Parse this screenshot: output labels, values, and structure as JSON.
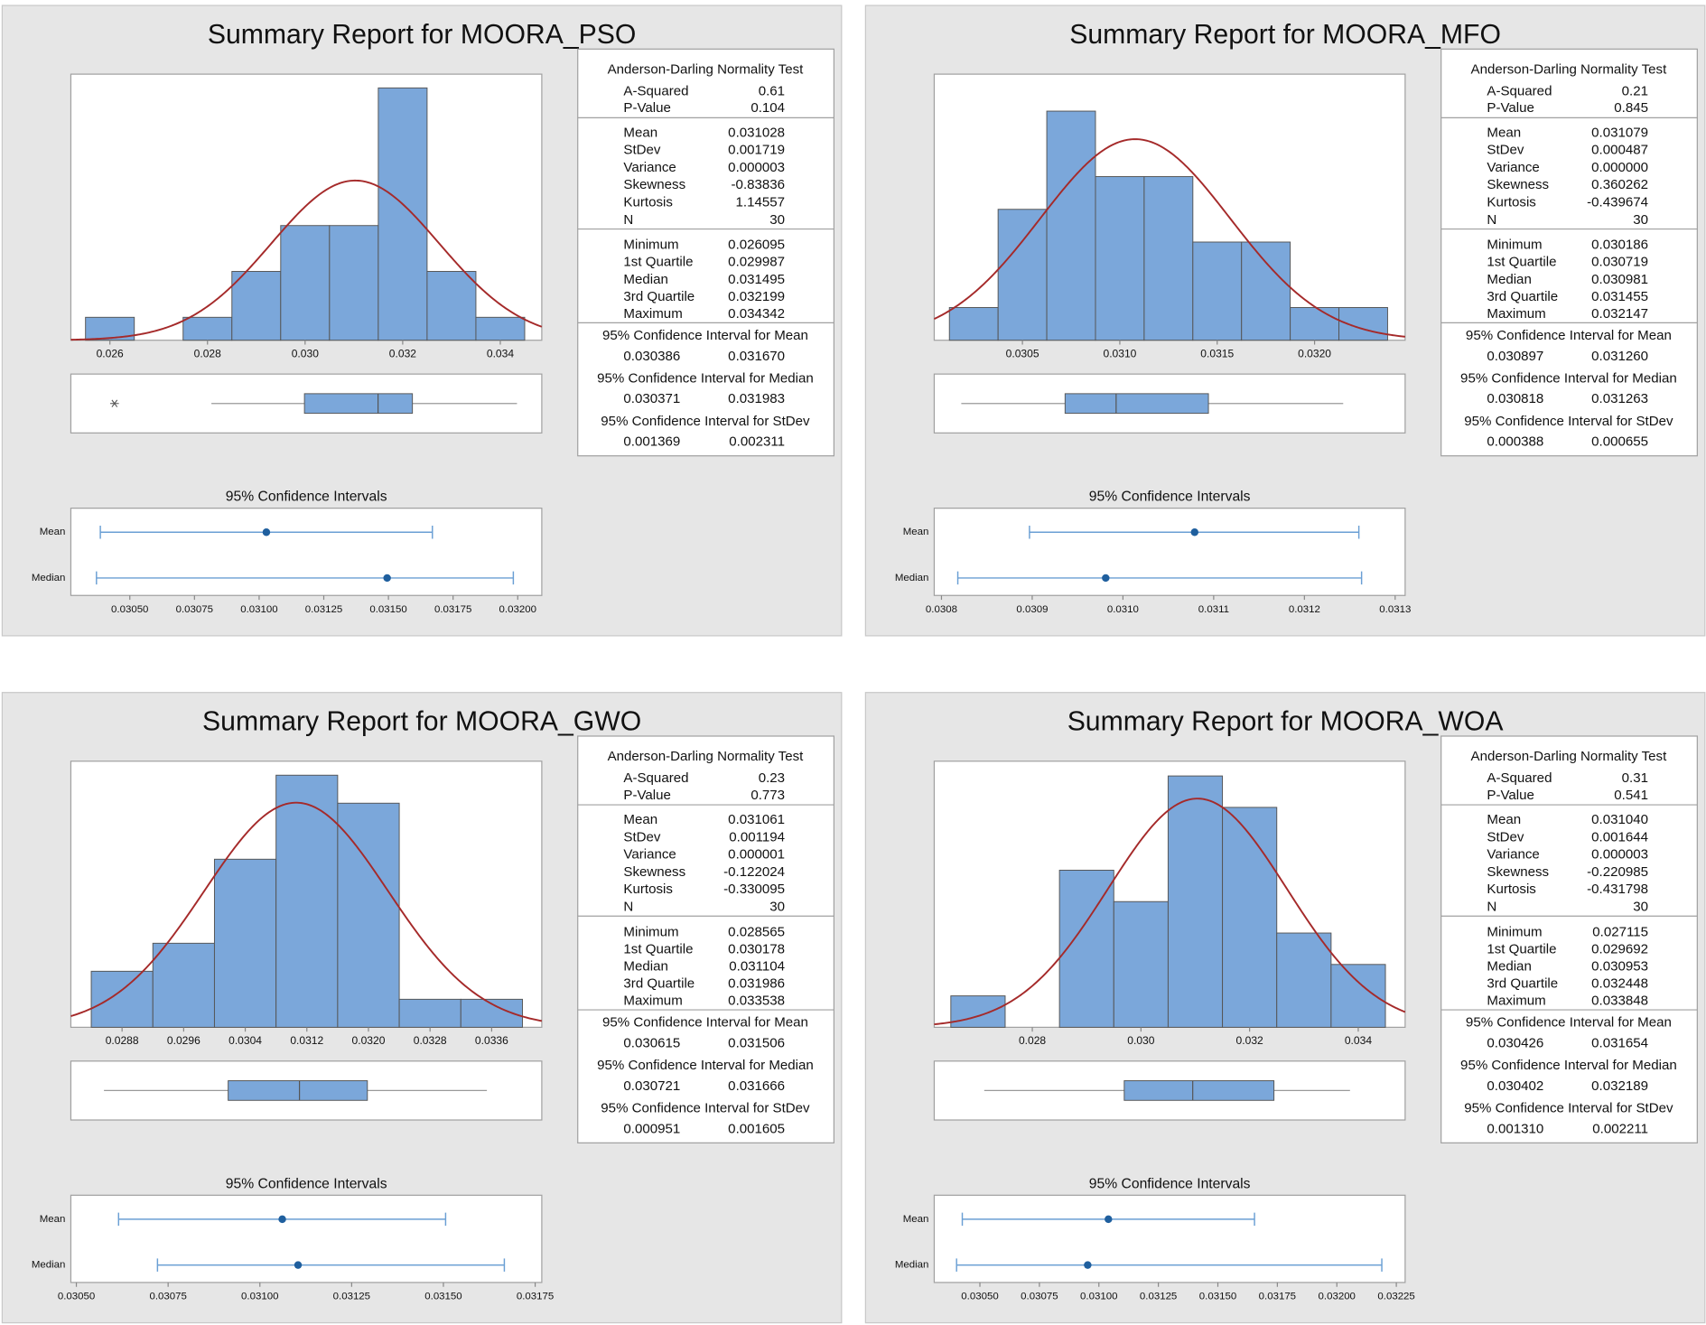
{
  "chart_data": [
    {
      "type": "summary",
      "title": "Summary Report for MOORA_PSO",
      "histogram": {
        "bins": [
          0.0255,
          0.0265,
          0.0275,
          0.0285,
          0.0295,
          0.0305,
          0.0315,
          0.0325,
          0.0335,
          0.0345
        ],
        "counts": [
          1,
          0,
          1,
          3,
          5,
          5,
          11,
          3,
          1
        ],
        "color": "#7ba7da",
        "curve_color": "#a52a2a",
        "xlim": [
          0.0252,
          0.03485
        ],
        "ylim": [
          0,
          11.6
        ],
        "xticks": [
          0.026,
          0.028,
          {
            "value": 0.03,
            "label": "0.030"
          },
          0.032,
          0.034
        ]
      },
      "boxplot": {
        "whiskers": [
          0.02808,
          0.034342
        ],
        "outliers": [
          0.026095
        ]
      },
      "test": {
        "title": "Anderson-Darling Normality Test",
        "rows": [
          {
            "name": "A-Squared",
            "value": 0.61
          },
          {
            "name": "P-Value",
            "value": 0.104
          }
        ]
      },
      "stats": [
        {
          "name": "Mean",
          "value": 0.031028
        },
        {
          "name": "StDev",
          "value": 0.001719
        },
        {
          "name": "Variance",
          "value": 3e-06
        },
        {
          "name": "Skewness",
          "value": -0.83836
        },
        {
          "name": "Kurtosis",
          "value": 1.14557
        },
        {
          "name": "N",
          "value": 30
        }
      ],
      "quartiles": [
        {
          "name": "Minimum",
          "value": 0.026095
        },
        {
          "name": "1st Quartile",
          "value": 0.029987
        },
        {
          "name": "Median",
          "value": 0.031495
        },
        {
          "name": "3rd Quartile",
          "value": 0.032199
        },
        {
          "name": "Maximum",
          "value": 0.034342
        }
      ],
      "intervals": [
        {
          "title": "95% Confidence Interval for Mean",
          "values": [
            0.030386,
            0.03167
          ],
          "value_labels": [
            "0.030386",
            "0.031670"
          ]
        },
        {
          "title": "95% Confidence Interval for Median",
          "values": [
            0.030371,
            0.031983
          ]
        },
        {
          "title": "95% Confidence Interval for StDev",
          "values": [
            0.001369,
            0.002311
          ]
        }
      ],
      "ci_plot": {
        "title": "95% Confidence Intervals",
        "categories": [
          "Mean",
          "Median"
        ],
        "color": "#6a9fd4",
        "point_color": "#1f5f9e",
        "xlim": [
          0.030272,
          0.032093
        ],
        "xticks": [
          {
            "value": 0.0305,
            "label": "0.03050"
          },
          0.03075,
          {
            "value": 0.031,
            "label": "0.03100"
          },
          0.03125,
          {
            "value": 0.0315,
            "label": "0.03150"
          },
          0.03175,
          {
            "value": 0.032,
            "label": "0.03200"
          }
        ]
      }
    },
    {
      "type": "summary",
      "title": "Summary Report for MOORA_MFO",
      "histogram": {
        "bins": [
          0.030125,
          0.030375,
          0.030625,
          0.030875,
          0.031125,
          0.031375,
          0.031625,
          0.031875,
          0.032125,
          0.032375
        ],
        "counts": [
          1,
          4,
          7,
          5,
          5,
          3,
          3,
          1,
          1
        ],
        "color": "#7ba7da",
        "curve_color": "#a52a2a",
        "xlim": [
          0.030047,
          0.032465
        ],
        "ylim": [
          0,
          8.13
        ],
        "xticks": [
          0.0305,
          {
            "value": 0.031,
            "label": "0.0310"
          },
          0.0315,
          {
            "value": 0.032,
            "label": "0.0320"
          }
        ]
      },
      "boxplot": {
        "whiskers": [
          0.030186,
          0.032147
        ],
        "outliers": []
      },
      "test": {
        "title": "Anderson-Darling Normality Test",
        "rows": [
          {
            "name": "A-Squared",
            "value": 0.21
          },
          {
            "name": "P-Value",
            "value": 0.845
          }
        ]
      },
      "stats": [
        {
          "name": "Mean",
          "value": 0.031079
        },
        {
          "name": "StDev",
          "value": 0.000487
        },
        {
          "name": "Variance",
          "value": 0,
          "value_label": "0.000000"
        },
        {
          "name": "Skewness",
          "value": 0.360262
        },
        {
          "name": "Kurtosis",
          "value": -0.439674
        },
        {
          "name": "N",
          "value": 30
        }
      ],
      "quartiles": [
        {
          "name": "Minimum",
          "value": 0.030186
        },
        {
          "name": "1st Quartile",
          "value": 0.030719
        },
        {
          "name": "Median",
          "value": 0.030981
        },
        {
          "name": "3rd Quartile",
          "value": 0.031455
        },
        {
          "name": "Maximum",
          "value": 0.032147
        }
      ],
      "intervals": [
        {
          "title": "95% Confidence Interval for Mean",
          "values": [
            0.030897,
            0.03126
          ],
          "value_labels": [
            "0.030897",
            "0.031260"
          ]
        },
        {
          "title": "95% Confidence Interval for Median",
          "values": [
            0.030818,
            0.031263
          ]
        },
        {
          "title": "95% Confidence Interval for StDev",
          "values": [
            0.000388,
            0.000655
          ]
        }
      ],
      "ci_plot": {
        "title": "95% Confidence Intervals",
        "categories": [
          "Mean",
          "Median"
        ],
        "color": "#6a9fd4",
        "point_color": "#1f5f9e",
        "xlim": [
          0.030792,
          0.031311
        ],
        "xticks": [
          0.0308,
          0.0309,
          {
            "value": 0.031,
            "label": "0.0310"
          },
          0.0311,
          0.0312,
          0.0313
        ]
      }
    },
    {
      "type": "summary",
      "title": "Summary Report for MOORA_GWO",
      "histogram": {
        "bins": [
          0.0284,
          0.0292,
          0.03,
          0.0308,
          0.0316,
          0.0324,
          0.0332,
          0.034
        ],
        "counts": [
          2,
          3,
          6,
          9,
          8,
          1,
          1
        ],
        "color": "#7ba7da",
        "curve_color": "#a52a2a",
        "xlim": [
          0.028135,
          0.034251
        ],
        "ylim": [
          0,
          9.5
        ],
        "xticks": [
          0.0288,
          0.0296,
          0.0304,
          0.0312,
          {
            "value": 0.032,
            "label": "0.0320"
          },
          0.0328,
          0.0336
        ]
      },
      "boxplot": {
        "whiskers": [
          0.028565,
          0.033538
        ],
        "outliers": []
      },
      "test": {
        "title": "Anderson-Darling Normality Test",
        "rows": [
          {
            "name": "A-Squared",
            "value": 0.23
          },
          {
            "name": "P-Value",
            "value": 0.773
          }
        ]
      },
      "stats": [
        {
          "name": "Mean",
          "value": 0.031061
        },
        {
          "name": "StDev",
          "value": 0.001194
        },
        {
          "name": "Variance",
          "value": 1e-06
        },
        {
          "name": "Skewness",
          "value": -0.122024
        },
        {
          "name": "Kurtosis",
          "value": -0.330095
        },
        {
          "name": "N",
          "value": 30
        }
      ],
      "quartiles": [
        {
          "name": "Minimum",
          "value": 0.028565
        },
        {
          "name": "1st Quartile",
          "value": 0.030178
        },
        {
          "name": "Median",
          "value": 0.031104
        },
        {
          "name": "3rd Quartile",
          "value": 0.031986
        },
        {
          "name": "Maximum",
          "value": 0.033538
        }
      ],
      "intervals": [
        {
          "title": "95% Confidence Interval for Mean",
          "values": [
            0.030615,
            0.031506
          ]
        },
        {
          "title": "95% Confidence Interval for Median",
          "values": [
            0.030721,
            0.031666
          ]
        },
        {
          "title": "95% Confidence Interval for StDev",
          "values": [
            0.000951,
            0.001605
          ]
        }
      ],
      "ci_plot": {
        "title": "95% Confidence Intervals",
        "categories": [
          "Mean",
          "Median"
        ],
        "color": "#6a9fd4",
        "point_color": "#1f5f9e",
        "xlim": [
          0.030485,
          0.031768
        ],
        "xticks": [
          {
            "value": 0.0305,
            "label": "0.03050"
          },
          0.03075,
          {
            "value": 0.031,
            "label": "0.03100"
          },
          0.03125,
          {
            "value": 0.0315,
            "label": "0.03150"
          },
          0.03175
        ]
      }
    },
    {
      "type": "summary",
      "title": "Summary Report for MOORA_WOA",
      "histogram": {
        "bins": [
          0.0265,
          0.0275,
          0.0285,
          0.0295,
          0.0305,
          0.0315,
          0.0325,
          0.0335,
          0.0345
        ],
        "counts": [
          1,
          0,
          5,
          4,
          8,
          7,
          3,
          2
        ],
        "color": "#7ba7da",
        "curve_color": "#a52a2a",
        "xlim": [
          0.026194,
          0.034863
        ],
        "ylim": [
          0,
          8.47
        ],
        "xticks": [
          0.028,
          {
            "value": 0.03,
            "label": "0.030"
          },
          0.032,
          0.034
        ]
      },
      "boxplot": {
        "whiskers": [
          0.027115,
          0.033848
        ],
        "outliers": []
      },
      "test": {
        "title": "Anderson-Darling Normality Test",
        "rows": [
          {
            "name": "A-Squared",
            "value": 0.31
          },
          {
            "name": "P-Value",
            "value": 0.541
          }
        ]
      },
      "stats": [
        {
          "name": "Mean",
          "value": 0.03104,
          "value_label": "0.031040"
        },
        {
          "name": "StDev",
          "value": 0.001644
        },
        {
          "name": "Variance",
          "value": 3e-06
        },
        {
          "name": "Skewness",
          "value": -0.220985
        },
        {
          "name": "Kurtosis",
          "value": -0.431798
        },
        {
          "name": "N",
          "value": 30
        }
      ],
      "quartiles": [
        {
          "name": "Minimum",
          "value": 0.027115
        },
        {
          "name": "1st Quartile",
          "value": 0.029692
        },
        {
          "name": "Median",
          "value": 0.030953
        },
        {
          "name": "3rd Quartile",
          "value": 0.032448
        },
        {
          "name": "Maximum",
          "value": 0.033848
        }
      ],
      "intervals": [
        {
          "title": "95% Confidence Interval for Mean",
          "values": [
            0.030426,
            0.031654
          ]
        },
        {
          "title": "95% Confidence Interval for Median",
          "values": [
            0.030402,
            0.032189
          ]
        },
        {
          "title": "95% Confidence Interval for StDev",
          "values": [
            0.00131,
            0.002211
          ],
          "value_labels": [
            "0.001310",
            "0.002211"
          ]
        }
      ],
      "ci_plot": {
        "title": "95% Confidence Intervals",
        "categories": [
          "Mean",
          "Median"
        ],
        "color": "#6a9fd4",
        "point_color": "#1f5f9e",
        "xlim": [
          0.030308,
          0.032287
        ],
        "xticks": [
          {
            "value": 0.0305,
            "label": "0.03050"
          },
          0.03075,
          {
            "value": 0.031,
            "label": "0.03100"
          },
          0.03125,
          {
            "value": 0.0315,
            "label": "0.03150"
          },
          0.03175,
          {
            "value": 0.032,
            "label": "0.03200"
          },
          0.03225
        ]
      }
    }
  ]
}
